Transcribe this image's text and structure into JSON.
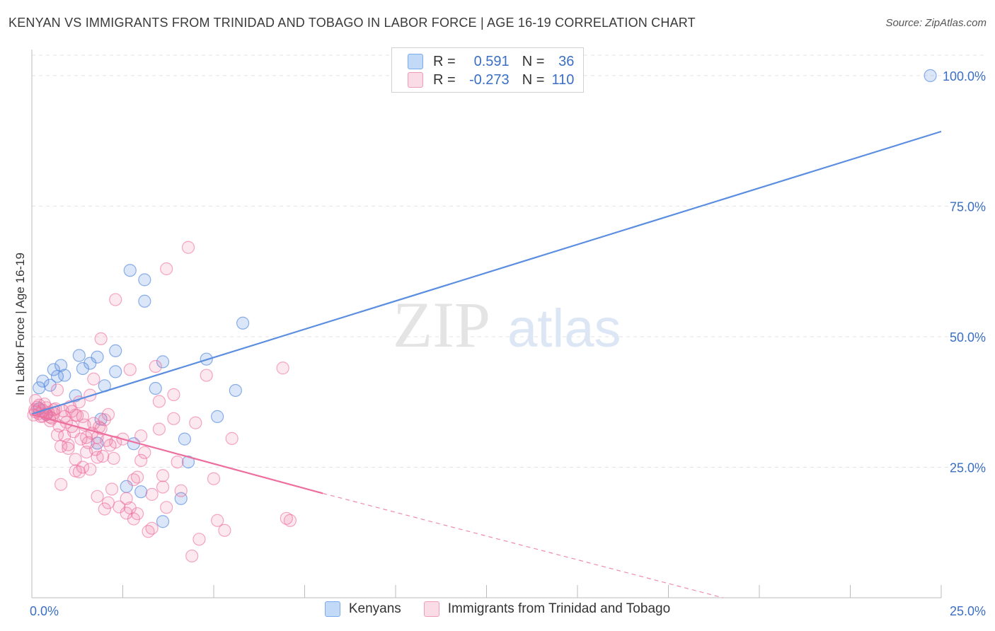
{
  "header": {
    "title": "KENYAN VS IMMIGRANTS FROM TRINIDAD AND TOBAGO IN LABOR FORCE | AGE 16-19 CORRELATION CHART",
    "source": "Source: ZipAtlas.com"
  },
  "legend": {
    "rows": [
      {
        "r_label": "R =",
        "r_value": "0.591",
        "n_label": "N =",
        "n_value": "36",
        "color": "#7aaaf0"
      },
      {
        "r_label": "R =",
        "r_value": "-0.273",
        "n_label": "N =",
        "n_value": "110",
        "color": "#f29ab8"
      }
    ]
  },
  "bottom_legend": {
    "items": [
      {
        "label": "Kenyans",
        "color": "#7aaaf0"
      },
      {
        "label": "Immigrants from Trinidad and Tobago",
        "color": "#f29ab8"
      }
    ]
  },
  "watermark": {
    "zip": "ZIP",
    "atlas": "atlas"
  },
  "chart_data": {
    "type": "scatter",
    "title": "KENYAN VS IMMIGRANTS FROM TRINIDAD AND TOBAGO IN LABOR FORCE | AGE 16-19 CORRELATION CHART",
    "xlabel": "",
    "ylabel": "In Labor Force | Age 16-19",
    "xlim": [
      0,
      25
    ],
    "ylim": [
      0,
      105
    ],
    "x_tick_labels": [
      "0.0%",
      "25.0%"
    ],
    "y_ticks": [
      25,
      50,
      75,
      100
    ],
    "y_tick_labels": [
      "25.0%",
      "50.0%",
      "75.0%",
      "100.0%"
    ],
    "grid": true,
    "legend_position": "top-center",
    "series": [
      {
        "name": "Kenyans",
        "color": "#5b8ee0",
        "trend": {
          "x": [
            0.0,
            25.0
          ],
          "y": [
            35.2,
            89.3
          ],
          "dashed_to": null
        },
        "points": [
          [
            0.2,
            40.2
          ],
          [
            0.3,
            41.5
          ],
          [
            0.5,
            40.7
          ],
          [
            0.6,
            43.7
          ],
          [
            0.7,
            42.4
          ],
          [
            0.8,
            44.5
          ],
          [
            0.9,
            42.6
          ],
          [
            1.2,
            38.7
          ],
          [
            1.3,
            46.4
          ],
          [
            1.4,
            43.9
          ],
          [
            1.6,
            44.9
          ],
          [
            1.8,
            46.1
          ],
          [
            2.0,
            40.6
          ],
          [
            2.3,
            47.3
          ],
          [
            2.3,
            43.3
          ],
          [
            1.9,
            34.2
          ],
          [
            1.8,
            29.6
          ],
          [
            2.6,
            21.3
          ],
          [
            2.8,
            29.5
          ],
          [
            2.7,
            62.7
          ],
          [
            3.1,
            60.9
          ],
          [
            3.1,
            56.8
          ],
          [
            3.0,
            20.3
          ],
          [
            3.4,
            40.1
          ],
          [
            3.6,
            45.2
          ],
          [
            3.6,
            14.6
          ],
          [
            4.1,
            19.0
          ],
          [
            4.2,
            30.4
          ],
          [
            4.3,
            26.0
          ],
          [
            4.8,
            45.7
          ],
          [
            5.1,
            34.7
          ],
          [
            5.6,
            39.7
          ],
          [
            5.8,
            52.6
          ],
          [
            24.7,
            100.0
          ],
          [
            0.2,
            36.2
          ],
          [
            0.4,
            35.1
          ]
        ]
      },
      {
        "name": "Immigrants from Trinidad and Tobago",
        "color": "#ee6e9e",
        "trend": {
          "x": [
            0.0,
            8.0
          ],
          "y": [
            35.1,
            20.0
          ],
          "dashed_to": [
            19.0,
            0.0
          ]
        },
        "points": [
          [
            0.1,
            37.8
          ],
          [
            0.1,
            35.6
          ],
          [
            0.2,
            36.9
          ],
          [
            0.2,
            35.3
          ],
          [
            0.3,
            35.9
          ],
          [
            0.3,
            34.8
          ],
          [
            0.4,
            36.4
          ],
          [
            0.4,
            35.2
          ],
          [
            0.5,
            33.9
          ],
          [
            0.5,
            34.6
          ],
          [
            0.6,
            36.0
          ],
          [
            0.6,
            35.3
          ],
          [
            0.7,
            39.8
          ],
          [
            0.7,
            31.2
          ],
          [
            0.8,
            29.0
          ],
          [
            0.8,
            21.7
          ],
          [
            0.9,
            34.7
          ],
          [
            0.9,
            31.0
          ],
          [
            1.0,
            29.3
          ],
          [
            1.0,
            28.6
          ],
          [
            1.1,
            35.7
          ],
          [
            1.1,
            32.8
          ],
          [
            1.2,
            35.0
          ],
          [
            1.2,
            26.5
          ],
          [
            1.2,
            24.3
          ],
          [
            1.3,
            24.1
          ],
          [
            1.3,
            37.5
          ],
          [
            1.4,
            25.0
          ],
          [
            1.4,
            34.7
          ],
          [
            1.5,
            30.7
          ],
          [
            1.5,
            27.9
          ],
          [
            1.6,
            38.8
          ],
          [
            1.6,
            24.6
          ],
          [
            1.7,
            41.9
          ],
          [
            1.7,
            33.4
          ],
          [
            1.8,
            30.7
          ],
          [
            1.8,
            26.9
          ],
          [
            1.8,
            19.4
          ],
          [
            1.9,
            49.6
          ],
          [
            1.9,
            32.4
          ],
          [
            2.0,
            34.1
          ],
          [
            2.0,
            17.0
          ],
          [
            2.1,
            18.2
          ],
          [
            2.1,
            35.1
          ],
          [
            2.2,
            20.8
          ],
          [
            2.3,
            57.1
          ],
          [
            2.3,
            29.8
          ],
          [
            2.4,
            17.4
          ],
          [
            2.5,
            30.4
          ],
          [
            2.6,
            19.0
          ],
          [
            2.6,
            16.2
          ],
          [
            2.7,
            17.2
          ],
          [
            2.7,
            43.7
          ],
          [
            2.8,
            22.6
          ],
          [
            2.8,
            15.1
          ],
          [
            2.9,
            23.1
          ],
          [
            2.9,
            16.1
          ],
          [
            3.0,
            31.0
          ],
          [
            3.0,
            26.3
          ],
          [
            3.1,
            27.8
          ],
          [
            3.2,
            12.7
          ],
          [
            3.3,
            19.8
          ],
          [
            3.3,
            13.3
          ],
          [
            3.4,
            44.3
          ],
          [
            3.5,
            37.6
          ],
          [
            3.5,
            32.3
          ],
          [
            3.6,
            23.4
          ],
          [
            3.6,
            21.2
          ],
          [
            3.7,
            17.3
          ],
          [
            3.7,
            63.0
          ],
          [
            3.9,
            38.9
          ],
          [
            3.9,
            34.3
          ],
          [
            4.0,
            26.0
          ],
          [
            4.1,
            20.5
          ],
          [
            4.3,
            67.1
          ],
          [
            4.4,
            8.0
          ],
          [
            4.5,
            33.5
          ],
          [
            4.6,
            11.2
          ],
          [
            4.8,
            42.6
          ],
          [
            5.0,
            22.8
          ],
          [
            5.1,
            14.8
          ],
          [
            5.3,
            12.9
          ],
          [
            5.5,
            30.5
          ],
          [
            6.9,
            44.0
          ],
          [
            7.0,
            15.2
          ],
          [
            7.1,
            14.8
          ],
          [
            0.15,
            36.5
          ],
          [
            0.25,
            34.7
          ],
          [
            0.35,
            37.1
          ],
          [
            0.45,
            35.5
          ],
          [
            0.55,
            34.4
          ],
          [
            0.65,
            36.2
          ],
          [
            0.75,
            32.9
          ],
          [
            0.85,
            35.8
          ],
          [
            0.95,
            33.6
          ],
          [
            1.05,
            36.6
          ],
          [
            1.15,
            31.8
          ],
          [
            1.25,
            34.9
          ],
          [
            1.35,
            30.4
          ],
          [
            1.45,
            33.1
          ],
          [
            1.55,
            29.7
          ],
          [
            1.65,
            31.5
          ],
          [
            1.75,
            28.4
          ],
          [
            1.85,
            32.7
          ],
          [
            1.95,
            27.1
          ],
          [
            2.05,
            30.1
          ],
          [
            2.15,
            29.2
          ],
          [
            2.25,
            26.7
          ],
          [
            0.05,
            35.0
          ],
          [
            0.08,
            36.0
          ]
        ]
      }
    ]
  }
}
